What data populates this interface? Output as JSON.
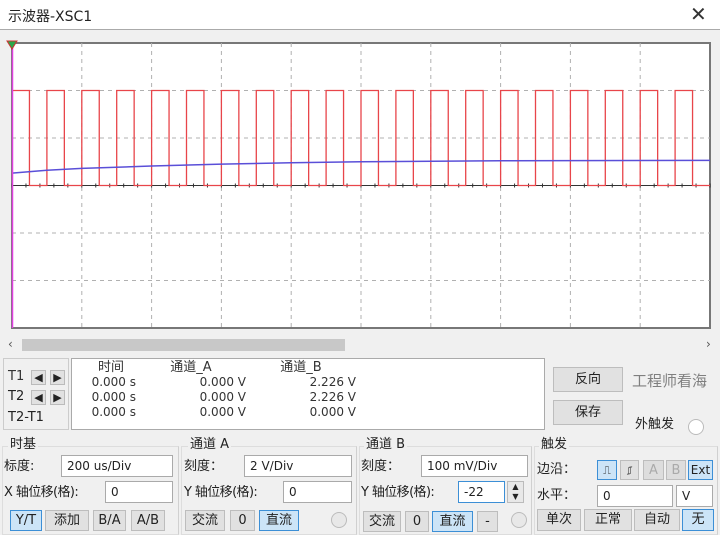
{
  "window": {
    "title": "示波器-XSC1",
    "close_icon": "close-icon"
  },
  "colors": {
    "channel_a": "#e8454a",
    "channel_b": "#5a4fd8",
    "cursor": "#e040e0",
    "grid": "#b0b0b0",
    "active_button": "#cce4f7"
  },
  "waveforms": {
    "channel_a": {
      "shape": "square",
      "period_us": 100,
      "duty": 0.5,
      "high_v": 4,
      "low_v": 0
    },
    "channel_b": {
      "time_us": [
        0,
        100,
        200,
        400,
        600,
        800,
        1000,
        1400,
        2000
      ],
      "voltage_v": [
        2.226,
        2.232,
        2.236,
        2.241,
        2.245,
        2.248,
        2.25,
        2.252,
        2.253
      ]
    },
    "screen": {
      "x_divisions": 10,
      "y_divisions": 6
    }
  },
  "cursors": {
    "labels": [
      "T1",
      "T2",
      "T2-T1"
    ],
    "left_icon": "arrow-left-icon",
    "right_icon": "arrow-right-icon"
  },
  "readings": {
    "headers": [
      "时间",
      "通道_A",
      "通道_B"
    ],
    "rows": [
      [
        "0.000 s",
        "0.000 V",
        "2.226 V"
      ],
      [
        "0.000 s",
        "0.000 V",
        "2.226 V"
      ],
      [
        "0.000 s",
        "0.000 V",
        "0.000 V"
      ]
    ]
  },
  "buttons": {
    "reverse": "反向",
    "save": "保存",
    "ext_trigger": "外触发"
  },
  "timebase": {
    "title": "时基",
    "scale_label": "标度:",
    "scale": "200 us/Div",
    "xpos_label": "X 轴位移(格):",
    "xpos": "0",
    "modes": [
      "Y/T",
      "添加",
      "B/A",
      "A/B"
    ],
    "active_mode": "Y/T"
  },
  "channel_a": {
    "title": "通道 A",
    "scale_label": "刻度：",
    "scale": "2  V/Div",
    "ypos_label": "Y 轴位移(格):",
    "ypos": "0",
    "coupling": [
      "交流",
      "0",
      "直流"
    ],
    "active": "直流"
  },
  "channel_b": {
    "title": "通道 B",
    "scale_label": "刻度：",
    "scale": "100 mV/Div",
    "ypos_label": "Y 轴位移(格):",
    "ypos": "-22",
    "coupling": [
      "交流",
      "0",
      "直流",
      "-"
    ],
    "active": "直流"
  },
  "trigger": {
    "title": "触发",
    "edge_label": "边沿：",
    "edge_buttons": [
      "A",
      "B",
      "Ext"
    ],
    "active_source": "Ext",
    "level_label": "水平：",
    "level": "0",
    "level_unit": "V",
    "modes": [
      "单次",
      "正常",
      "自动",
      "无"
    ],
    "active_mode": "无"
  },
  "watermark": "工程师看海"
}
